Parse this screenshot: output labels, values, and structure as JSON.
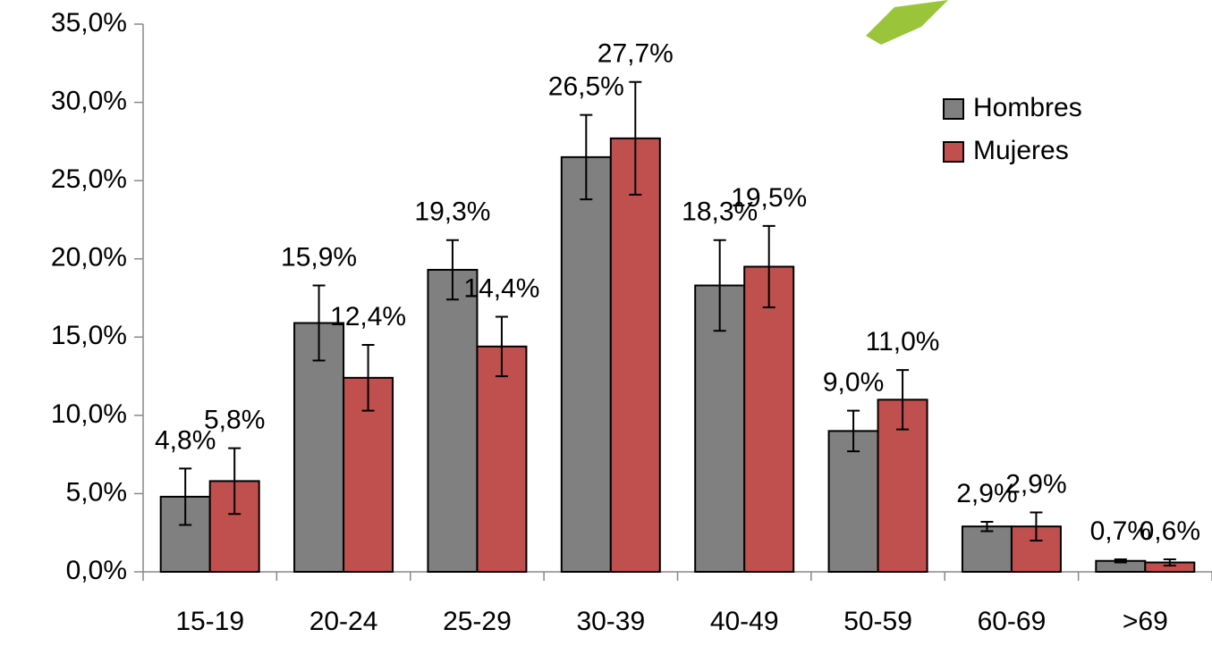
{
  "chart_data": {
    "type": "bar",
    "categories": [
      "15-19",
      "20-24",
      "25-29",
      "30-39",
      "40-49",
      "50-59",
      "60-69",
      ">69"
    ],
    "series": [
      {
        "name": "Hombres",
        "color": "#808080",
        "values": [
          4.8,
          15.9,
          19.3,
          26.5,
          18.3,
          9.0,
          2.9,
          0.7
        ],
        "value_labels": [
          "4,8%",
          "15,9%",
          "19,3%",
          "26,5%",
          "18,3%",
          "9,0%",
          "2,9%",
          "0,7%"
        ],
        "errors": [
          1.8,
          2.4,
          1.9,
          2.7,
          2.9,
          1.3,
          0.3,
          0.1
        ]
      },
      {
        "name": "Mujeres",
        "color": "#c0504d",
        "values": [
          5.8,
          12.4,
          14.4,
          27.7,
          19.5,
          11.0,
          2.9,
          0.6
        ],
        "value_labels": [
          "5,8%",
          "12,4%",
          "14,4%",
          "27,7%",
          "19,5%",
          "11,0%",
          "2,9%",
          "0,6%"
        ],
        "errors": [
          2.1,
          2.1,
          1.9,
          3.6,
          2.6,
          1.9,
          0.9,
          0.2
        ]
      }
    ],
    "ylim": [
      0,
      35
    ],
    "yticks": [
      {
        "value": 0,
        "label": "0,0%"
      },
      {
        "value": 5,
        "label": "5,0%"
      },
      {
        "value": 10,
        "label": "10,0%"
      },
      {
        "value": 15,
        "label": "15,0%"
      },
      {
        "value": 20,
        "label": "20,0%"
      },
      {
        "value": 25,
        "label": "25,0%"
      },
      {
        "value": 30,
        "label": "30,0%"
      },
      {
        "value": 35,
        "label": "35,0%"
      }
    ],
    "grid": false,
    "legend": "top-right"
  }
}
